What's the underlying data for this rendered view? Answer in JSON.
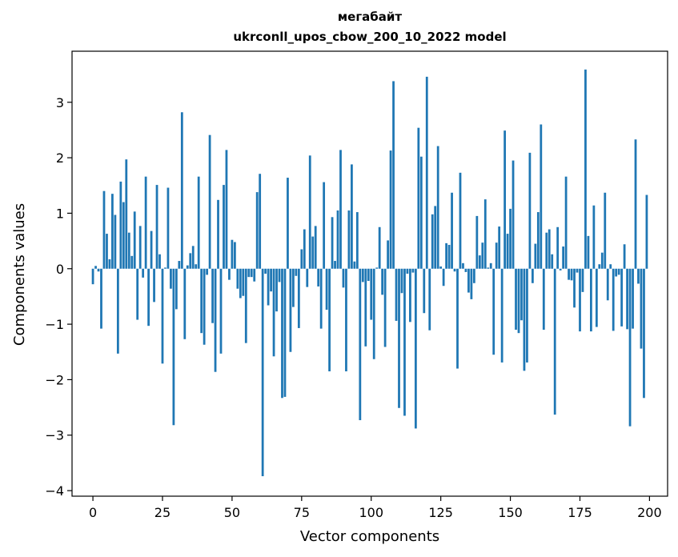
{
  "chart_data": {
    "type": "bar",
    "title": "мегабайт",
    "subtitle": "ukrconll_upos_cbow_200_10_2022 model",
    "xlabel": "Vector components",
    "ylabel": "Components values",
    "xlim": [
      -7.5,
      206.5
    ],
    "ylim": [
      -4.1,
      3.92
    ],
    "xticks": [
      0,
      25,
      50,
      75,
      100,
      125,
      150,
      175,
      200
    ],
    "xtick_labels": [
      "0",
      "25",
      "50",
      "75",
      "100",
      "125",
      "150",
      "175",
      "200"
    ],
    "yticks": [
      -4,
      -3,
      -2,
      -1,
      0,
      1,
      2,
      3
    ],
    "ytick_labels": [
      "−4",
      "−3",
      "−2",
      "−1",
      "0",
      "1",
      "2",
      "3"
    ],
    "grid": false,
    "bar_color": "#1f77b4",
    "x": [
      0,
      1,
      2,
      3,
      4,
      5,
      6,
      7,
      8,
      9,
      10,
      11,
      12,
      13,
      14,
      15,
      16,
      17,
      18,
      19,
      20,
      21,
      22,
      23,
      24,
      25,
      26,
      27,
      28,
      29,
      30,
      31,
      32,
      33,
      34,
      35,
      36,
      37,
      38,
      39,
      40,
      41,
      42,
      43,
      44,
      45,
      46,
      47,
      48,
      49,
      50,
      51,
      52,
      53,
      54,
      55,
      56,
      57,
      58,
      59,
      60,
      61,
      62,
      63,
      64,
      65,
      66,
      67,
      68,
      69,
      70,
      71,
      72,
      73,
      74,
      75,
      76,
      77,
      78,
      79,
      80,
      81,
      82,
      83,
      84,
      85,
      86,
      87,
      88,
      89,
      90,
      91,
      92,
      93,
      94,
      95,
      96,
      97,
      98,
      99,
      100,
      101,
      102,
      103,
      104,
      105,
      106,
      107,
      108,
      109,
      110,
      111,
      112,
      113,
      114,
      115,
      116,
      117,
      118,
      119,
      120,
      121,
      122,
      123,
      124,
      125,
      126,
      127,
      128,
      129,
      130,
      131,
      132,
      133,
      134,
      135,
      136,
      137,
      138,
      139,
      140,
      141,
      142,
      143,
      144,
      145,
      146,
      147,
      148,
      149,
      150,
      151,
      152,
      153,
      154,
      155,
      156,
      157,
      158,
      159,
      160,
      161,
      162,
      163,
      164,
      165,
      166,
      167,
      168,
      169,
      170,
      171,
      172,
      173,
      174,
      175,
      176,
      177,
      178,
      179,
      180,
      181,
      182,
      183,
      184,
      185,
      186,
      187,
      188,
      189,
      190,
      191,
      192,
      193,
      194,
      195,
      196,
      197,
      198,
      199
    ],
    "values": [
      -0.28,
      0.05,
      -0.05,
      -1.08,
      1.4,
      0.63,
      0.17,
      1.35,
      0.97,
      -1.53,
      1.57,
      1.2,
      1.97,
      0.65,
      0.23,
      1.03,
      -0.92,
      0.77,
      -0.16,
      1.66,
      -1.03,
      0.68,
      -0.6,
      1.51,
      0.26,
      -1.71,
      0.02,
      1.46,
      -0.36,
      -2.82,
      -0.73,
      0.14,
      2.82,
      -1.27,
      0.06,
      0.28,
      0.41,
      0.08,
      1.66,
      -1.16,
      -1.37,
      -0.11,
      2.41,
      -0.98,
      -1.86,
      1.24,
      -1.53,
      1.51,
      2.14,
      -0.2,
      0.52,
      0.48,
      -0.36,
      -0.53,
      -0.49,
      -1.34,
      -0.15,
      -0.15,
      -0.23,
      1.38,
      1.71,
      -3.74,
      -0.09,
      -0.66,
      -0.41,
      -1.58,
      -0.77,
      -0.24,
      -2.33,
      -2.31,
      1.64,
      -1.5,
      -0.69,
      -0.13,
      -1.07,
      0.35,
      0.71,
      -0.33,
      2.04,
      0.58,
      0.77,
      -0.32,
      -1.08,
      1.56,
      -0.74,
      -1.85,
      0.93,
      0.14,
      1.05,
      2.14,
      -0.34,
      -1.85,
      1.05,
      1.88,
      0.13,
      1.02,
      -2.73,
      -0.24,
      -1.4,
      -0.22,
      -0.92,
      -1.63,
      0.02,
      0.75,
      -0.47,
      -1.41,
      0.51,
      2.13,
      3.38,
      -0.94,
      -2.51,
      -0.44,
      -2.65,
      -0.09,
      -0.96,
      -0.07,
      -2.88,
      2.54,
      2.02,
      -0.8,
      3.46,
      -1.11,
      0.98,
      1.13,
      2.21,
      0.04,
      -0.31,
      0.46,
      0.43,
      1.37,
      -0.05,
      -1.8,
      1.73,
      0.1,
      -0.06,
      -0.43,
      -0.55,
      -0.26,
      0.95,
      0.24,
      0.47,
      1.25,
      0.02,
      0.1,
      -1.55,
      0.47,
      0.76,
      -1.69,
      2.49,
      0.63,
      1.08,
      1.95,
      -1.1,
      -1.16,
      -0.93,
      -1.84,
      -1.69,
      2.09,
      -0.26,
      0.45,
      1.02,
      2.6,
      -1.1,
      0.65,
      0.71,
      0.26,
      -2.63,
      0.75,
      -0.03,
      0.4,
      1.66,
      -0.2,
      -0.21,
      -0.7,
      -0.07,
      -1.13,
      -0.42,
      3.59,
      0.59,
      -1.13,
      1.14,
      -1.05,
      0.08,
      0.29,
      1.37,
      -0.57,
      0.08,
      -1.12,
      -0.14,
      -0.11,
      -1.04,
      0.44,
      -1.09,
      -2.84,
      -1.08,
      2.33,
      -0.27,
      -1.44,
      -2.33,
      1.33
    ]
  }
}
